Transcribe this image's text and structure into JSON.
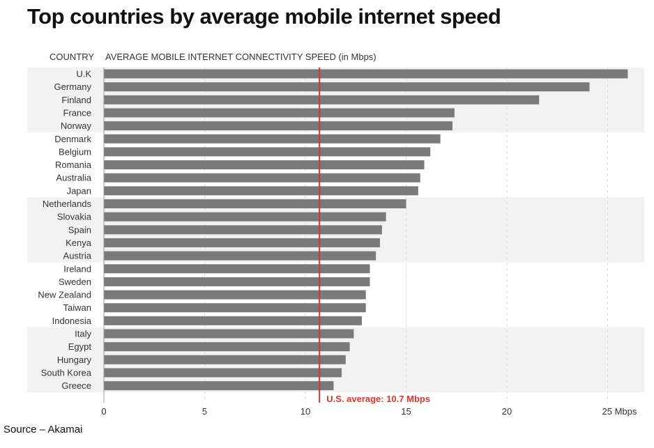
{
  "title": "Top countries by average mobile internet speed",
  "column_headers": {
    "country": "COUNTRY",
    "metric": "AVERAGE MOBILE INTERNET CONNECTIVITY SPEED (in Mbps)"
  },
  "source": "Source – Akamai",
  "colors": {
    "bar": "#7a7a7a",
    "band": "#f2f2f2",
    "reference_line": "#d9342b",
    "text": "#333333"
  },
  "chart_data": {
    "type": "bar",
    "orientation": "horizontal",
    "title": "Top countries by average mobile internet speed",
    "xlabel": "AVERAGE MOBILE INTERNET CONNECTIVITY SPEED (in Mbps)",
    "ylabel": "COUNTRY",
    "xlim": [
      0,
      26
    ],
    "x_ticks": [
      0,
      5,
      10,
      15,
      20,
      25
    ],
    "x_tick_labels": [
      "0",
      "5",
      "10",
      "15",
      "20",
      "25 Mbps"
    ],
    "grid": true,
    "categories": [
      "U.K",
      "Germany",
      "Finland",
      "France",
      "Norway",
      "Denmark",
      "Belgium",
      "Romania",
      "Australia",
      "Japan",
      "Netherlands",
      "Slovakia",
      "Spain",
      "Kenya",
      "Austria",
      "Ireland",
      "Sweden",
      "New Zealand",
      "Taiwan",
      "Indonesia",
      "Italy",
      "Egypt",
      "Hungary",
      "South Korea",
      "Greece"
    ],
    "values": [
      26.0,
      24.1,
      21.6,
      17.4,
      17.3,
      16.7,
      16.2,
      15.9,
      15.7,
      15.6,
      15.0,
      14.0,
      13.8,
      13.7,
      13.5,
      13.2,
      13.2,
      13.0,
      13.0,
      12.8,
      12.4,
      12.2,
      12.0,
      11.8,
      11.4
    ],
    "reference_line": {
      "value": 10.7,
      "label": "U.S. average: 10.7 Mbps"
    }
  }
}
